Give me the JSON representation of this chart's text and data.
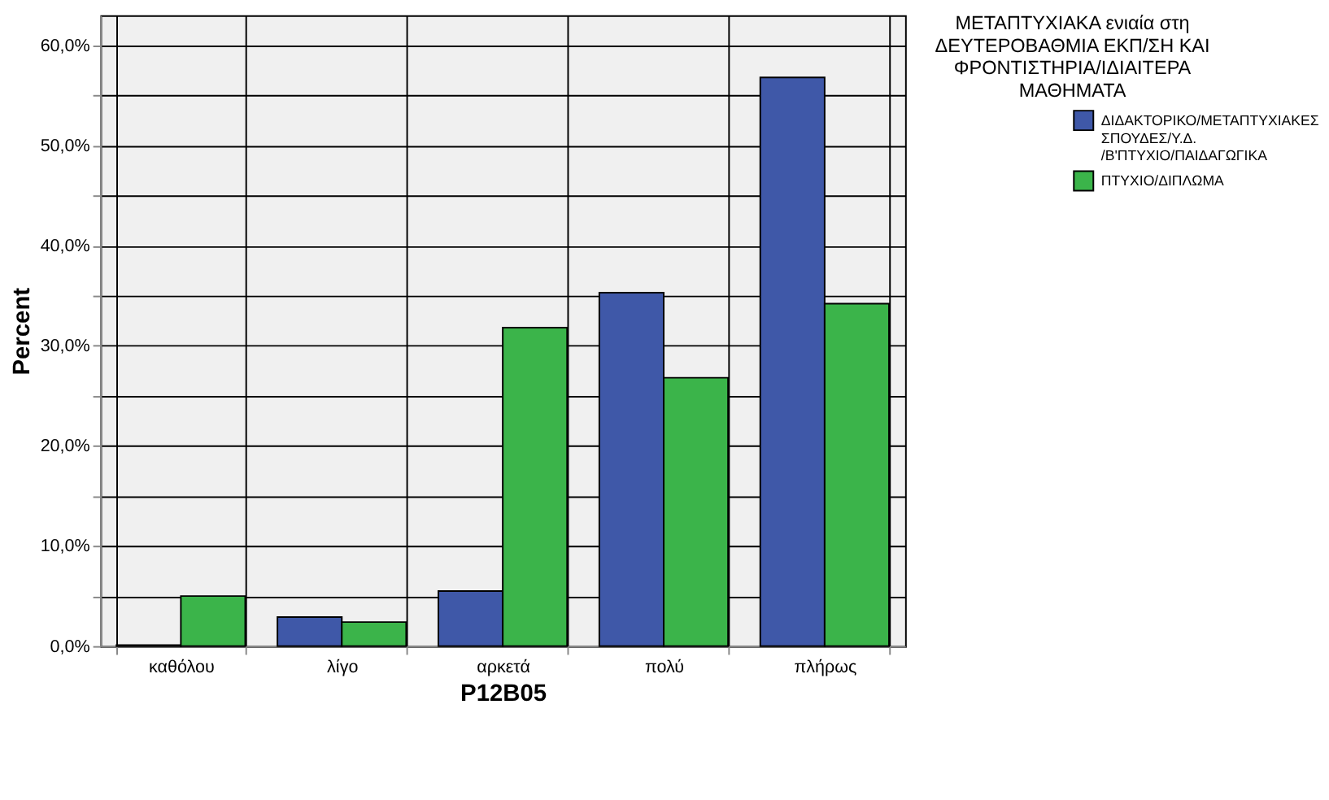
{
  "chart_data": {
    "type": "bar",
    "xlabel": "P12B05",
    "ylabel": "Percent",
    "legend_title": "ΜΕΤΑΠΤΥΧΙΑΚΑ ενιαία στη ΔΕΥΤΕΡΟΒΑΘΜΙΑ ΕΚΠ/ΣΗ ΚΑΙ ΦΡΟΝΤΙΣΤΗΡΙΑ/ΙΔΙΑΙΤΕΡΑ ΜΑΘΗΜΑΤΑ",
    "categories": [
      "καθόλου",
      "λίγο",
      "αρκετά",
      "πολύ",
      "πλήρως"
    ],
    "series": [
      {
        "name": "ΔΙΔΑΚΤΟΡΙΚΟ/ΜΕΤΑΠΤΥΧΙΑΚΕΣ ΣΠΟΥΔΕΣ/Υ.Δ. /Β'ΠΤΥΧΙΟ/ΠΑΙΔΑΓΩΓΙΚΑ",
        "color": "#3f58a8",
        "values": [
          0.1,
          2.9,
          5.5,
          35.3,
          56.8
        ]
      },
      {
        "name": "ΠΤΥΧΙΟ/ΔΙΠΛΩΜΑ",
        "color": "#3bb44a",
        "values": [
          5.0,
          2.4,
          31.8,
          26.8,
          34.2
        ]
      }
    ],
    "ylim": [
      0,
      63
    ],
    "yticks": [
      {
        "value": 0,
        "label": "0,0%"
      },
      {
        "value": 5,
        "label": null
      },
      {
        "value": 10,
        "label": "10,0%"
      },
      {
        "value": 15,
        "label": null
      },
      {
        "value": 20,
        "label": "20,0%"
      },
      {
        "value": 25,
        "label": null
      },
      {
        "value": 30,
        "label": "30,0%"
      },
      {
        "value": 35,
        "label": null
      },
      {
        "value": 40,
        "label": "40,0%"
      },
      {
        "value": 45,
        "label": null
      },
      {
        "value": 50,
        "label": "50,0%"
      },
      {
        "value": 55,
        "label": null
      },
      {
        "value": 60,
        "label": "60,0%"
      }
    ],
    "grid": true,
    "legend": "right"
  }
}
